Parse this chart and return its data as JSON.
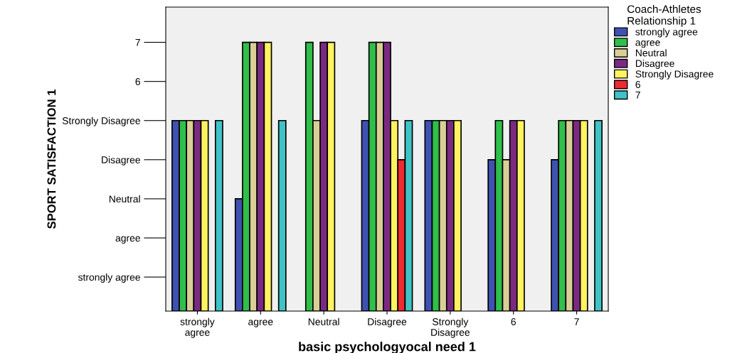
{
  "chart_data": {
    "type": "bar",
    "xlabel": "basic psychologyocal need 1",
    "ylabel": "SPORT SATISFACTION 1",
    "legend_title": "Coach-Athletes\nRelationship 1",
    "categories": [
      "strongly\nagree",
      "agree",
      "Neutral",
      "Disagree",
      "Strongly\nDisagree",
      "6",
      "7"
    ],
    "series": [
      {
        "name": "strongly agree",
        "color": "#3f51b1",
        "values": [
          5,
          3,
          null,
          5,
          5,
          4,
          4
        ]
      },
      {
        "name": "agree",
        "color": "#2fbf4a",
        "values": [
          5,
          7,
          7,
          7,
          5,
          5,
          5
        ]
      },
      {
        "name": "Neutral",
        "color": "#d9cf96",
        "values": [
          5,
          7,
          5,
          7,
          5,
          4,
          5
        ]
      },
      {
        "name": "Disagree",
        "color": "#7b2a82",
        "values": [
          5,
          7,
          7,
          7,
          5,
          5,
          5
        ]
      },
      {
        "name": "Strongly Disagree",
        "color": "#fff35f",
        "values": [
          5,
          7,
          7,
          5,
          5,
          5,
          5
        ]
      },
      {
        "name": "6",
        "color": "#ef2a30",
        "values": [
          null,
          null,
          null,
          4,
          null,
          null,
          null
        ]
      },
      {
        "name": "7",
        "color": "#3fc3c6",
        "values": [
          5,
          5,
          null,
          5,
          null,
          null,
          5
        ]
      }
    ],
    "ylim": [
      0.13,
      7.9
    ],
    "yticks": [
      {
        "value": 1,
        "label": "strongly agree"
      },
      {
        "value": 2,
        "label": "agree"
      },
      {
        "value": 3,
        "label": "Neutral"
      },
      {
        "value": 4,
        "label": "Disagree"
      },
      {
        "value": 5,
        "label": "Strongly Disagree"
      },
      {
        "value": 6,
        "label": "6"
      },
      {
        "value": 7,
        "label": "7"
      }
    ],
    "grid": false,
    "legend": "right"
  }
}
